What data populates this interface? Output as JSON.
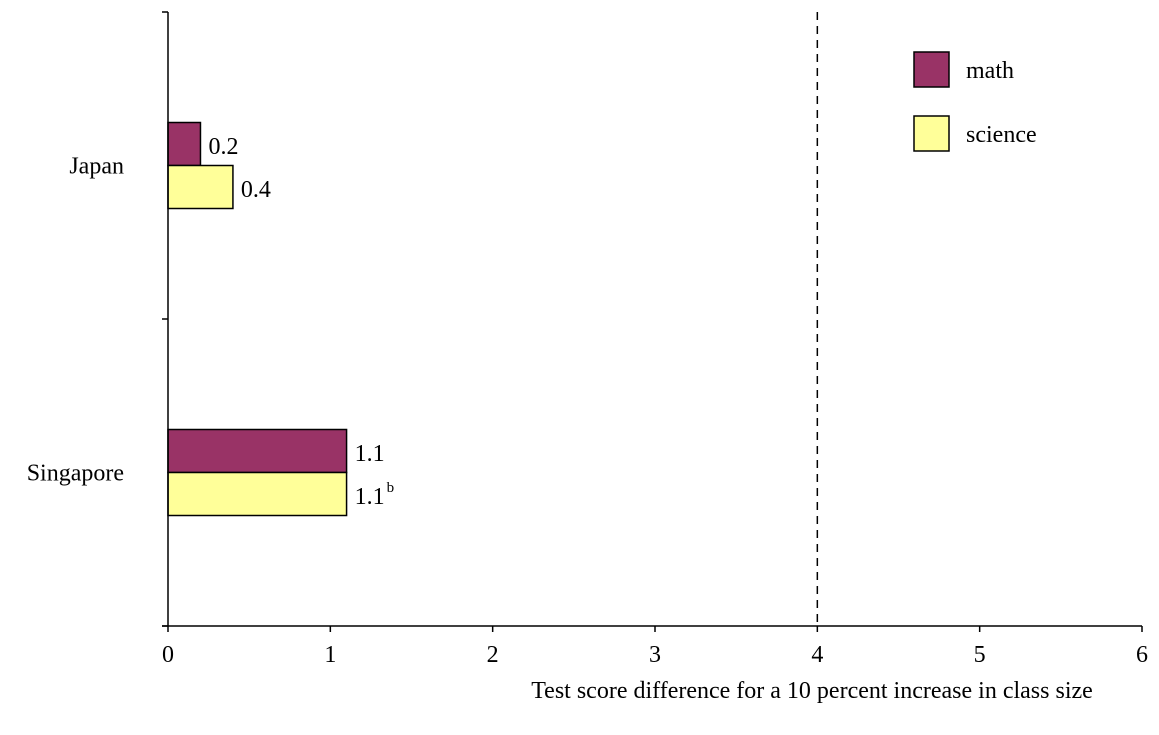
{
  "chart_data": {
    "type": "bar",
    "orientation": "horizontal",
    "categories": [
      "Japan",
      "Singapore"
    ],
    "series": [
      {
        "name": "math",
        "values": [
          0.2,
          1.1
        ],
        "labels": [
          "0.2",
          "1.1"
        ],
        "label_sup": [
          "",
          ""
        ],
        "color": "#993366"
      },
      {
        "name": "science",
        "values": [
          0.4,
          1.1
        ],
        "labels": [
          "0.4",
          "1.1"
        ],
        "label_sup": [
          "",
          "b"
        ],
        "color": "#FFFF99"
      }
    ],
    "xlim": [
      0,
      6
    ],
    "xticks": [
      "0",
      "1",
      "2",
      "3",
      "4",
      "5",
      "6"
    ],
    "xlabel": "Test score difference for a 10 percent increase in class size",
    "ylabel": "",
    "title": "",
    "reference_line": {
      "x": 4,
      "style": "dashed"
    },
    "legend": "top-right",
    "grid": false
  }
}
